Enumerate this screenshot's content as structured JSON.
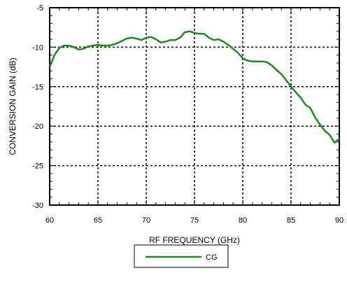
{
  "chart_data": {
    "type": "line",
    "xlabel": "RF FREQUENCY (GHz)",
    "ylabel": "CONVERSION GAIN (dB)",
    "xlim": [
      60,
      90
    ],
    "ylim": [
      -30,
      -5
    ],
    "x_ticks": [
      "60",
      "65",
      "70",
      "75",
      "80",
      "85",
      "90"
    ],
    "y_ticks": [
      "-5",
      "-10",
      "-15",
      "-20",
      "-25",
      "-30"
    ],
    "grid": "dashed",
    "legend_position": "bottom-center",
    "series": [
      {
        "name": "CG",
        "color": "#1e8a1e",
        "x": [
          60,
          60.5,
          61,
          61.5,
          62,
          62.5,
          63,
          63.5,
          64,
          64.5,
          65,
          65.5,
          66,
          66.5,
          67,
          67.5,
          68,
          68.5,
          69,
          69.5,
          70,
          70.5,
          71,
          71.5,
          72,
          72.5,
          73,
          73.5,
          74,
          74.5,
          75,
          75.5,
          76,
          76.5,
          77,
          77.5,
          78,
          78.5,
          79,
          79.5,
          80,
          80.5,
          81,
          81.5,
          82,
          82.5,
          83,
          83.5,
          84,
          84.5,
          85,
          85.5,
          86,
          86.5,
          87,
          87.5,
          88,
          88.5,
          89,
          89.5,
          90
        ],
        "y": [
          -12.5,
          -11.0,
          -10.1,
          -9.8,
          -9.8,
          -10.0,
          -10.3,
          -10.2,
          -9.9,
          -9.8,
          -9.7,
          -9.8,
          -9.8,
          -9.7,
          -9.5,
          -9.2,
          -8.9,
          -8.8,
          -8.9,
          -9.1,
          -8.8,
          -8.7,
          -9.0,
          -9.4,
          -9.3,
          -9.1,
          -9.1,
          -8.8,
          -8.1,
          -8.0,
          -8.2,
          -8.3,
          -8.3,
          -8.8,
          -9.1,
          -9.0,
          -9.3,
          -9.7,
          -10.2,
          -10.7,
          -11.4,
          -11.7,
          -11.8,
          -11.8,
          -11.8,
          -11.9,
          -12.3,
          -12.9,
          -13.4,
          -14.2,
          -15.0,
          -15.7,
          -16.4,
          -17.3,
          -17.7,
          -18.9,
          -19.8,
          -20.6,
          -21.1,
          -22.1,
          -21.6
        ]
      }
    ]
  }
}
